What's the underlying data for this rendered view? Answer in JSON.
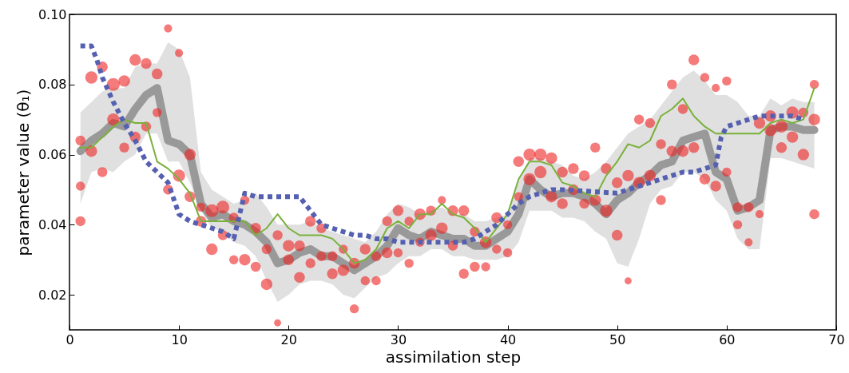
{
  "chart_data": {
    "type": "line",
    "xlabel": "assimilation step",
    "ylabel": "parameter value (θ₁)",
    "xlim": [
      0,
      70
    ],
    "ylim": [
      0.01,
      0.1
    ],
    "xticks": [
      0,
      10,
      20,
      30,
      40,
      50,
      60,
      70
    ],
    "yticks": [
      0.02,
      0.04,
      0.06,
      0.08,
      {
        "value": 0.1,
        "label": "0.10"
      }
    ],
    "grid": false,
    "series": [
      {
        "color": "#999999",
        "x": [
          1,
          2,
          3,
          4,
          5,
          6,
          7,
          8,
          9,
          10,
          11,
          12,
          13,
          14,
          15,
          16,
          17,
          18,
          19,
          20,
          21,
          22,
          23,
          24,
          25,
          26,
          27,
          28,
          29,
          30,
          31,
          32,
          33,
          34,
          35,
          36,
          37,
          38,
          39,
          40,
          41,
          42,
          43,
          44,
          45,
          46,
          47,
          48,
          49,
          50,
          51,
          52,
          53,
          54,
          55,
          56,
          57,
          58,
          59,
          60,
          61,
          62,
          63,
          64,
          65,
          66,
          67,
          68
        ],
        "values": [
          0.061,
          0.064,
          0.066,
          0.069,
          0.068,
          0.073,
          0.077,
          0.079,
          0.064,
          0.063,
          0.06,
          0.046,
          0.042,
          0.043,
          0.041,
          0.04,
          0.038,
          0.035,
          0.029,
          0.03,
          0.032,
          0.033,
          0.031,
          0.031,
          0.029,
          0.027,
          0.029,
          0.031,
          0.034,
          0.039,
          0.037,
          0.036,
          0.038,
          0.037,
          0.036,
          0.036,
          0.034,
          0.034,
          0.036,
          0.038,
          0.043,
          0.053,
          0.05,
          0.048,
          0.049,
          0.049,
          0.048,
          0.046,
          0.043,
          0.047,
          0.049,
          0.052,
          0.054,
          0.057,
          0.058,
          0.064,
          0.065,
          0.066,
          0.055,
          0.053,
          0.044,
          0.045,
          0.047,
          0.067,
          0.068,
          0.068,
          0.067,
          0.067
        ],
        "lower": [
          0.046,
          0.055,
          0.056,
          0.055,
          0.058,
          0.06,
          0.066,
          0.066,
          0.058,
          0.058,
          0.052,
          0.044,
          0.039,
          0.038,
          0.035,
          0.034,
          0.031,
          0.024,
          0.018,
          0.02,
          0.023,
          0.024,
          0.024,
          0.023,
          0.02,
          0.019,
          0.022,
          0.025,
          0.026,
          0.029,
          0.031,
          0.031,
          0.033,
          0.033,
          0.031,
          0.031,
          0.03,
          0.03,
          0.03,
          0.031,
          0.035,
          0.044,
          0.044,
          0.044,
          0.042,
          0.042,
          0.041,
          0.038,
          0.036,
          0.029,
          0.028,
          0.036,
          0.046,
          0.05,
          0.051,
          0.055,
          0.055,
          0.053,
          0.047,
          0.044,
          0.036,
          0.033,
          0.033,
          0.059,
          0.059,
          0.058,
          0.057,
          0.056
        ],
        "upper": [
          0.072,
          0.075,
          0.078,
          0.079,
          0.079,
          0.085,
          0.086,
          0.086,
          0.092,
          0.09,
          0.082,
          0.055,
          0.05,
          0.048,
          0.046,
          0.047,
          0.049,
          0.045,
          0.04,
          0.04,
          0.04,
          0.041,
          0.039,
          0.038,
          0.037,
          0.036,
          0.035,
          0.038,
          0.043,
          0.046,
          0.045,
          0.043,
          0.044,
          0.045,
          0.043,
          0.043,
          0.041,
          0.041,
          0.042,
          0.043,
          0.053,
          0.059,
          0.059,
          0.058,
          0.057,
          0.054,
          0.053,
          0.055,
          0.058,
          0.062,
          0.066,
          0.068,
          0.07,
          0.074,
          0.078,
          0.082,
          0.084,
          0.081,
          0.077,
          0.077,
          0.075,
          0.071,
          0.071,
          0.076,
          0.074,
          0.076,
          0.075,
          0.075
        ]
      },
      {
        "type": "bubble",
        "color": "#ee2222",
        "x": [
          1,
          1,
          1,
          2,
          2,
          3,
          3,
          4,
          4,
          5,
          5,
          6,
          6,
          7,
          7,
          8,
          8,
          9,
          9,
          10,
          10,
          11,
          11,
          12,
          12,
          13,
          13,
          14,
          14,
          15,
          15,
          16,
          16,
          17,
          17,
          18,
          18,
          19,
          19,
          20,
          20,
          21,
          21,
          22,
          22,
          23,
          23,
          24,
          24,
          25,
          25,
          26,
          26,
          27,
          27,
          28,
          28,
          29,
          29,
          30,
          30,
          31,
          31,
          32,
          32,
          33,
          33,
          34,
          34,
          35,
          35,
          36,
          36,
          37,
          37,
          38,
          38,
          39,
          39,
          40,
          40,
          41,
          41,
          42,
          42,
          43,
          43,
          44,
          44,
          45,
          45,
          46,
          46,
          47,
          47,
          48,
          48,
          49,
          49,
          50,
          50,
          51,
          51,
          52,
          52,
          53,
          53,
          54,
          54,
          55,
          55,
          56,
          56,
          57,
          57,
          58,
          58,
          59,
          59,
          60,
          60,
          61,
          61,
          62,
          62,
          63,
          63,
          64,
          64,
          65,
          65,
          66,
          66,
          67,
          67,
          68,
          68,
          68
        ],
        "values": [
          0.064,
          0.051,
          0.041,
          0.082,
          0.061,
          0.085,
          0.055,
          0.08,
          0.07,
          0.081,
          0.062,
          0.087,
          0.065,
          0.086,
          0.068,
          0.083,
          0.072,
          0.096,
          0.05,
          0.089,
          0.054,
          0.06,
          0.048,
          0.045,
          0.041,
          0.044,
          0.033,
          0.045,
          0.037,
          0.042,
          0.03,
          0.047,
          0.03,
          0.039,
          0.028,
          0.033,
          0.023,
          0.037,
          0.012,
          0.034,
          0.03,
          0.034,
          0.025,
          0.041,
          0.029,
          0.039,
          0.031,
          0.031,
          0.026,
          0.033,
          0.027,
          0.029,
          0.016,
          0.033,
          0.024,
          0.031,
          0.024,
          0.041,
          0.032,
          0.044,
          0.032,
          0.041,
          0.029,
          0.043,
          0.035,
          0.044,
          0.037,
          0.047,
          0.039,
          0.044,
          0.034,
          0.044,
          0.026,
          0.038,
          0.028,
          0.035,
          0.028,
          0.042,
          0.033,
          0.04,
          0.032,
          0.058,
          0.048,
          0.06,
          0.053,
          0.06,
          0.055,
          0.059,
          0.048,
          0.055,
          0.046,
          0.056,
          0.05,
          0.054,
          0.046,
          0.062,
          0.047,
          0.056,
          0.044,
          0.052,
          0.037,
          0.054,
          0.024,
          0.07,
          0.052,
          0.069,
          0.054,
          0.063,
          0.047,
          0.08,
          0.061,
          0.073,
          0.061,
          0.087,
          0.062,
          0.082,
          0.053,
          0.079,
          0.051,
          0.081,
          0.055,
          0.045,
          0.04,
          0.045,
          0.035,
          0.069,
          0.043,
          0.071,
          0.067,
          0.068,
          0.062,
          0.072,
          0.065,
          0.072,
          0.06,
          0.08,
          0.07,
          0.043
        ],
        "sizes": [
          0.6,
          0.5,
          0.6,
          0.9,
          0.8,
          0.7,
          0.6,
          1,
          0.9,
          0.8,
          0.6,
          0.8,
          0.7,
          0.7,
          0.6,
          0.7,
          0.5,
          0.4,
          0.6,
          0.4,
          0.9,
          0.8,
          0.7,
          0.5,
          0.7,
          1,
          0.8,
          1,
          0.6,
          0.6,
          0.5,
          0.5,
          0.8,
          0.7,
          0.6,
          0.6,
          0.8,
          0.6,
          0.3,
          0.8,
          0.7,
          0.7,
          0.7,
          0.7,
          0.6,
          0.6,
          0.6,
          0.6,
          0.7,
          0.5,
          0.8,
          0.7,
          0.5,
          0.7,
          0.5,
          0.6,
          0.5,
          0.6,
          0.7,
          0.7,
          0.5,
          0.5,
          0.5,
          0.8,
          0.5,
          0.6,
          0.8,
          0.4,
          0.8,
          0.7,
          0.6,
          0.7,
          0.6,
          0.6,
          0.6,
          0.8,
          0.5,
          0.7,
          0.5,
          0.5,
          0.5,
          0.7,
          0.5,
          0.9,
          0.9,
          0.9,
          0.9,
          0.8,
          0.8,
          0.7,
          0.7,
          0.7,
          0.7,
          0.7,
          0.6,
          0.6,
          0.8,
          0.7,
          0.9,
          0.7,
          0.7,
          0.8,
          0.3,
          0.6,
          0.8,
          0.6,
          0.8,
          0.6,
          0.6,
          0.6,
          0.7,
          0.6,
          0.8,
          0.7,
          0.7,
          0.5,
          0.7,
          0.4,
          0.7,
          0.5,
          0.5,
          0.6,
          0.5,
          0.6,
          0.4,
          0.8,
          0.4,
          0.8,
          0.9,
          0.9,
          0.7,
          0.9,
          0.8,
          0.6,
          0.8,
          0.5,
          0.8,
          0.6
        ]
      },
      {
        "color": "#7ab03a",
        "x": [
          1,
          2,
          3,
          4,
          5,
          6,
          7,
          8,
          9,
          10,
          11,
          12,
          13,
          14,
          15,
          16,
          17,
          18,
          19,
          20,
          21,
          22,
          23,
          24,
          25,
          26,
          27,
          28,
          29,
          30,
          31,
          32,
          33,
          34,
          35,
          36,
          37,
          38,
          39,
          40,
          41,
          42,
          43,
          44,
          45,
          46,
          47,
          48,
          49,
          50,
          51,
          52,
          53,
          54,
          55,
          56,
          57,
          58,
          59,
          60,
          61,
          62,
          63,
          64,
          65,
          66,
          67,
          68
        ],
        "values": [
          0.062,
          0.062,
          0.065,
          0.068,
          0.07,
          0.069,
          0.069,
          0.058,
          0.056,
          0.053,
          0.049,
          0.041,
          0.041,
          0.041,
          0.041,
          0.041,
          0.037,
          0.039,
          0.043,
          0.039,
          0.037,
          0.037,
          0.037,
          0.036,
          0.033,
          0.029,
          0.03,
          0.033,
          0.039,
          0.041,
          0.039,
          0.043,
          0.043,
          0.046,
          0.043,
          0.042,
          0.039,
          0.035,
          0.039,
          0.043,
          0.053,
          0.058,
          0.058,
          0.057,
          0.052,
          0.051,
          0.049,
          0.048,
          0.054,
          0.058,
          0.063,
          0.062,
          0.064,
          0.071,
          0.073,
          0.076,
          0.071,
          0.068,
          0.066,
          0.066,
          0.066,
          0.066,
          0.066,
          0.069,
          0.07,
          0.069,
          0.07,
          0.079
        ]
      },
      {
        "color": "#5560b0",
        "line_style": "dotted",
        "x": [
          1,
          2,
          2.5,
          3,
          4,
          5,
          6,
          7,
          8,
          9,
          10,
          11,
          12,
          13,
          14,
          15,
          16,
          17,
          18,
          19,
          20,
          21,
          22,
          23,
          24,
          25,
          26,
          27,
          28,
          29,
          30,
          36,
          37,
          38,
          39,
          40,
          41,
          42,
          43,
          44,
          45,
          50,
          51,
          52,
          53,
          54,
          55,
          56,
          57,
          58,
          59,
          59.5,
          60,
          61,
          62,
          63,
          64,
          65,
          66,
          67
        ],
        "values": [
          0.091,
          0.091,
          0.087,
          0.082,
          0.075,
          0.069,
          0.064,
          0.058,
          0.055,
          0.052,
          0.043,
          0.041,
          0.04,
          0.039,
          0.038,
          0.036,
          0.049,
          0.048,
          0.048,
          0.048,
          0.048,
          0.048,
          0.044,
          0.04,
          0.039,
          0.038,
          0.037,
          0.037,
          0.036,
          0.036,
          0.035,
          0.035,
          0.036,
          0.038,
          0.04,
          0.043,
          0.046,
          0.048,
          0.049,
          0.05,
          0.05,
          0.049,
          0.05,
          0.051,
          0.052,
          0.053,
          0.054,
          0.055,
          0.055,
          0.056,
          0.057,
          0.065,
          0.068,
          0.069,
          0.07,
          0.071,
          0.071,
          0.071,
          0.071,
          0.07
        ]
      }
    ]
  }
}
